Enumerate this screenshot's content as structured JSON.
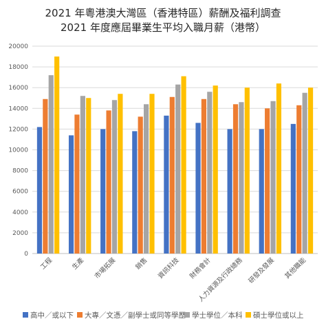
{
  "chart_data": {
    "type": "bar",
    "title": "2021 年粵港澳大灣區（香港特區）薪酬及福利調查",
    "subtitle": "2021 年度應屆畢業生平均入職月薪（港幣）",
    "categories": [
      "工程",
      "生產",
      "市場拓展",
      "銷售",
      "資訊科技",
      "財務會計",
      "人力資源及行政總務",
      "研發及發展",
      "其他職能"
    ],
    "ylim": [
      0,
      20000
    ],
    "yticks": [
      0,
      2000,
      4000,
      6000,
      8000,
      10000,
      12000,
      14000,
      16000,
      18000,
      20000
    ],
    "grid": true,
    "legend_position": "bottom",
    "series": [
      {
        "name": "高中／或以下",
        "color": "#4472C4",
        "values": [
          12200,
          11400,
          12000,
          11800,
          13300,
          12600,
          12000,
          12000,
          12500
        ]
      },
      {
        "name": "大專／文憑／副學士或同等學歷",
        "color": "#ED7D31",
        "values": [
          14900,
          13400,
          13800,
          13200,
          15100,
          14900,
          14400,
          14000,
          14300
        ]
      },
      {
        "name": "學士學位／本科",
        "color": "#A5A5A5",
        "values": [
          17200,
          15200,
          14800,
          14400,
          16300,
          15600,
          14600,
          14700,
          15500
        ]
      },
      {
        "name": "碩士學位或以上",
        "color": "#FFC000",
        "values": [
          19000,
          15000,
          15400,
          15400,
          17100,
          16200,
          16000,
          16400,
          16000
        ]
      }
    ]
  }
}
